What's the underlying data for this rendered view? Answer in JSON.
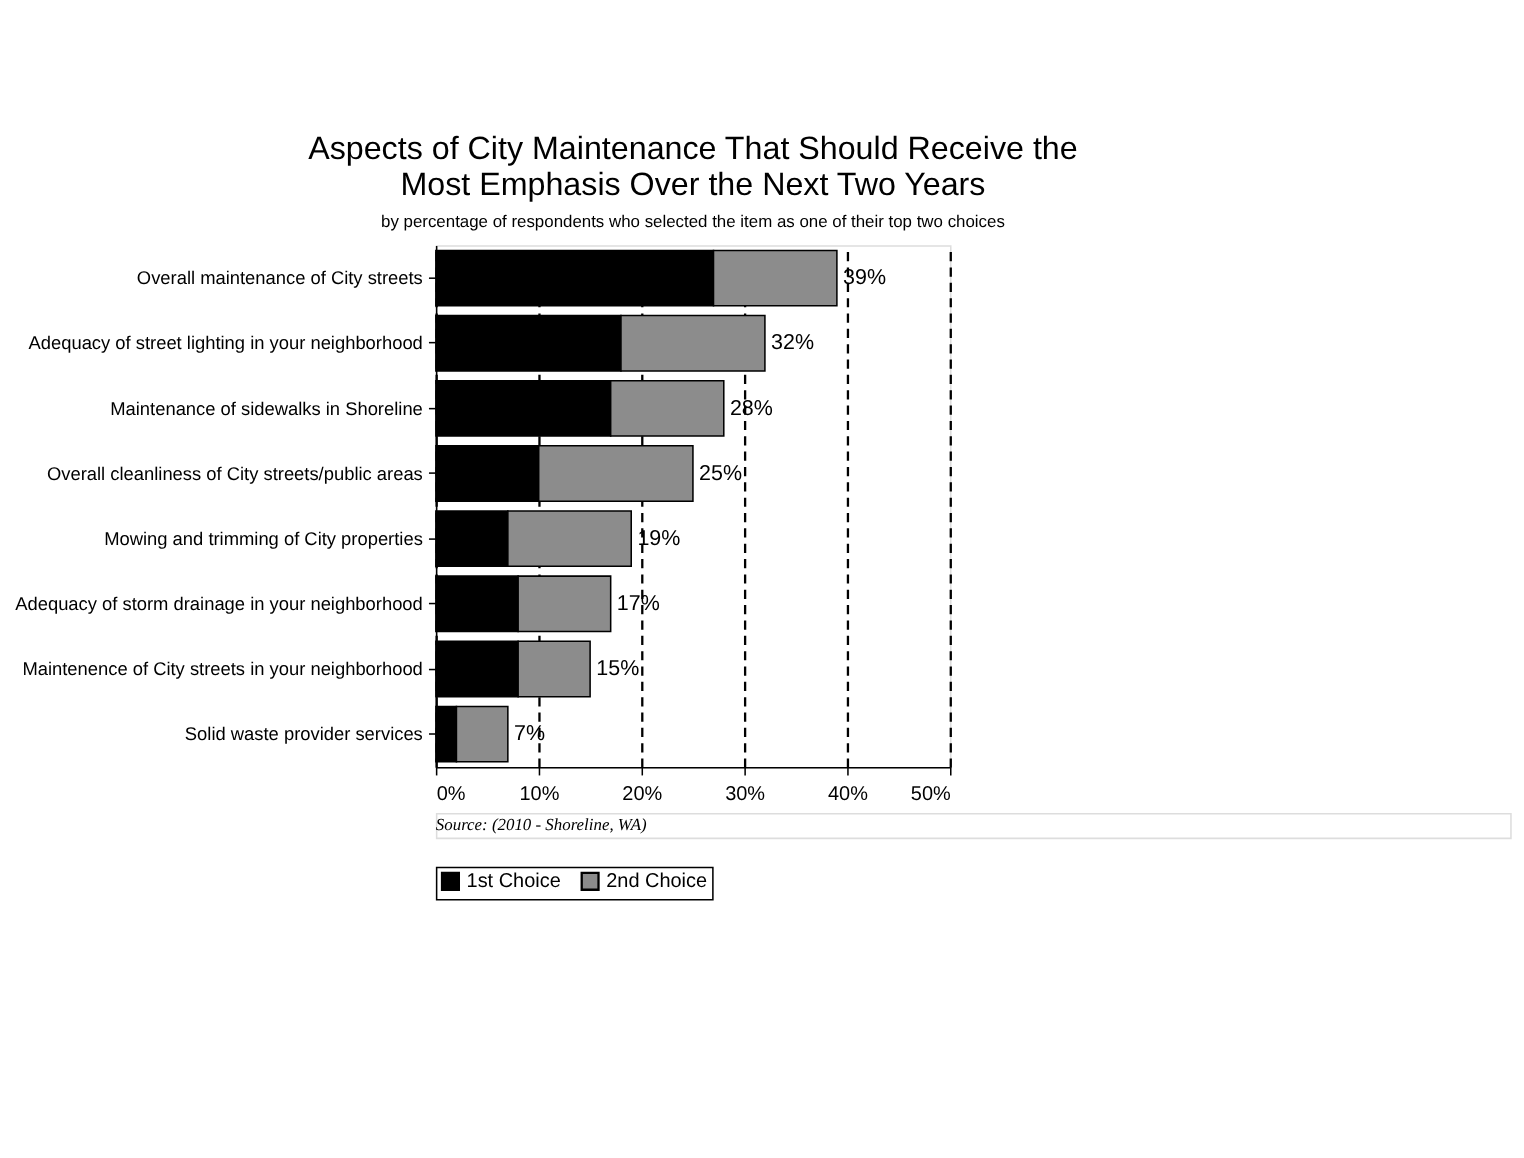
{
  "chart_data": {
    "type": "bar",
    "orientation": "horizontal",
    "stacked": true,
    "title": [
      "Aspects of City Maintenance That Should Receive the",
      "Most Emphasis Over the Next Two Years"
    ],
    "subtitle": "by percentage of respondents who selected the item as one of their top two choices",
    "categories": [
      "Overall maintenance of City streets",
      "Adequacy of street lighting in your neighborhood",
      "Maintenance of sidewalks in Shoreline",
      "Overall cleanliness of City streets/public areas",
      "Mowing and trimming of City properties",
      "Adequacy of storm drainage in your neighborhood",
      "Maintenence of City streets in your neighborhood",
      "Solid waste provider services"
    ],
    "series": [
      {
        "name": "1st Choice",
        "color": "#000000",
        "values": [
          27,
          18,
          17,
          10,
          7,
          8,
          8,
          2
        ]
      },
      {
        "name": "2nd Choice",
        "color": "#8c8c8c",
        "values": [
          12,
          14,
          11,
          15,
          12,
          9,
          7,
          5
        ]
      }
    ],
    "totals": [
      "39%",
      "32%",
      "28%",
      "25%",
      "19%",
      "17%",
      "15%",
      "7%"
    ],
    "xlim": [
      0,
      50
    ],
    "xticks": [
      {
        "value": 0,
        "label": "0%"
      },
      {
        "value": 10,
        "label": "10%"
      },
      {
        "value": 20,
        "label": "20%"
      },
      {
        "value": 30,
        "label": "30%"
      },
      {
        "value": 40,
        "label": "40%"
      },
      {
        "value": 50,
        "label": "50%"
      }
    ],
    "grid": "x",
    "line_style": "dashed",
    "legend": "bottom",
    "annotations": [
      "Source: (2010 - Shoreline, WA)"
    ]
  }
}
